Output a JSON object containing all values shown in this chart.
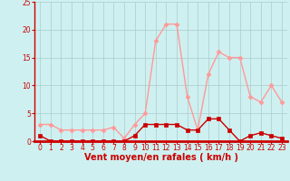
{
  "hours": [
    0,
    1,
    2,
    3,
    4,
    5,
    6,
    7,
    8,
    9,
    10,
    11,
    12,
    13,
    14,
    15,
    16,
    17,
    18,
    19,
    20,
    21,
    22,
    23
  ],
  "rafales": [
    3.0,
    3.0,
    2.0,
    2.0,
    2.0,
    2.0,
    2.0,
    2.5,
    0.5,
    3.0,
    5.0,
    18.0,
    21.0,
    21.0,
    8.0,
    2.0,
    12.0,
    16.0,
    15.0,
    15.0,
    8.0,
    7.0,
    10.0,
    7.0
  ],
  "moyen": [
    1.0,
    0.0,
    0.0,
    0.0,
    0.0,
    0.0,
    0.0,
    0.0,
    0.0,
    1.0,
    3.0,
    3.0,
    3.0,
    3.0,
    2.0,
    2.0,
    4.0,
    4.0,
    2.0,
    0.0,
    1.0,
    1.5,
    1.0,
    0.5
  ],
  "color_rafales": "#ff9999",
  "color_moyen": "#cc0000",
  "bg_color": "#cff0f0",
  "grid_color": "#aacccc",
  "ylim": [
    0,
    25
  ],
  "yticks": [
    0,
    5,
    10,
    15,
    20,
    25
  ],
  "xlim": [
    -0.5,
    23.5
  ],
  "xlabel": "Vent moyen/en rafales ( km/h )",
  "xlabel_color": "#cc0000",
  "tick_color": "#cc0000",
  "spine_color": "#cc0000",
  "line_width": 1.0,
  "marker_size": 2.5,
  "tick_labelsize": 5.5,
  "xlabel_fontsize": 7.0
}
